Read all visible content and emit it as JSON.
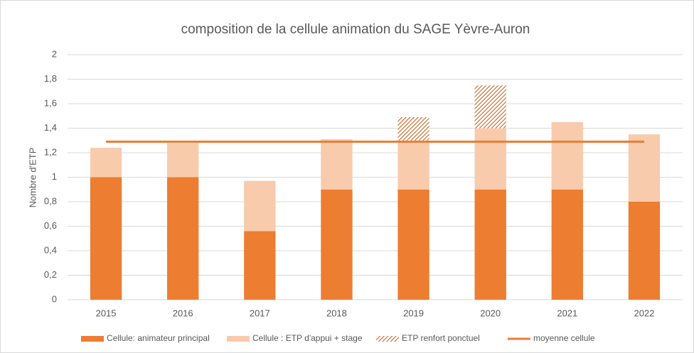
{
  "chart_data": {
    "type": "stacked-bar-line",
    "title": "composition de la cellule animation du SAGE Yèvre-Auron",
    "y_label": "Nombre d'ETP",
    "categories": [
      "2015",
      "2016",
      "2017",
      "2018",
      "2019",
      "2020",
      "2021",
      "2022"
    ],
    "series": [
      {
        "name": "Cellule: animateur principal",
        "color": "#ed7d31",
        "kind": "bar",
        "values": [
          1.0,
          1.0,
          0.56,
          0.9,
          0.9,
          0.9,
          0.9,
          0.8
        ]
      },
      {
        "name": "Cellule : ETP d'appui + stage",
        "color": "#f8cbad",
        "kind": "bar",
        "values": [
          0.24,
          0.28,
          0.41,
          0.41,
          0.4,
          0.5,
          0.55,
          0.55
        ]
      },
      {
        "name": "ETP renfort ponctuel",
        "color": "#c55a11",
        "kind": "hatched-bar",
        "values": [
          0,
          0,
          0,
          0,
          0.19,
          0.35,
          0,
          0
        ]
      },
      {
        "name": "moyenne cellule",
        "color": "#ed7d31",
        "kind": "line",
        "values": [
          1.29,
          1.29,
          1.29,
          1.29,
          1.29,
          1.29,
          1.29,
          1.29
        ]
      }
    ],
    "ylim": [
      0,
      2
    ],
    "yticks": [
      0,
      {
        "value": 0.2,
        "label": "0,2"
      },
      {
        "value": 0.4,
        "label": "0,4"
      },
      {
        "value": 0.6,
        "label": "0,6"
      },
      {
        "value": 0.8,
        "label": "0,8"
      },
      1,
      {
        "value": 1.2,
        "label": "1,2"
      },
      {
        "value": 1.4,
        "label": "1,4"
      },
      {
        "value": 1.6,
        "label": "1,6"
      },
      {
        "value": 1.8,
        "label": "1,8"
      },
      2
    ],
    "grid": true
  }
}
